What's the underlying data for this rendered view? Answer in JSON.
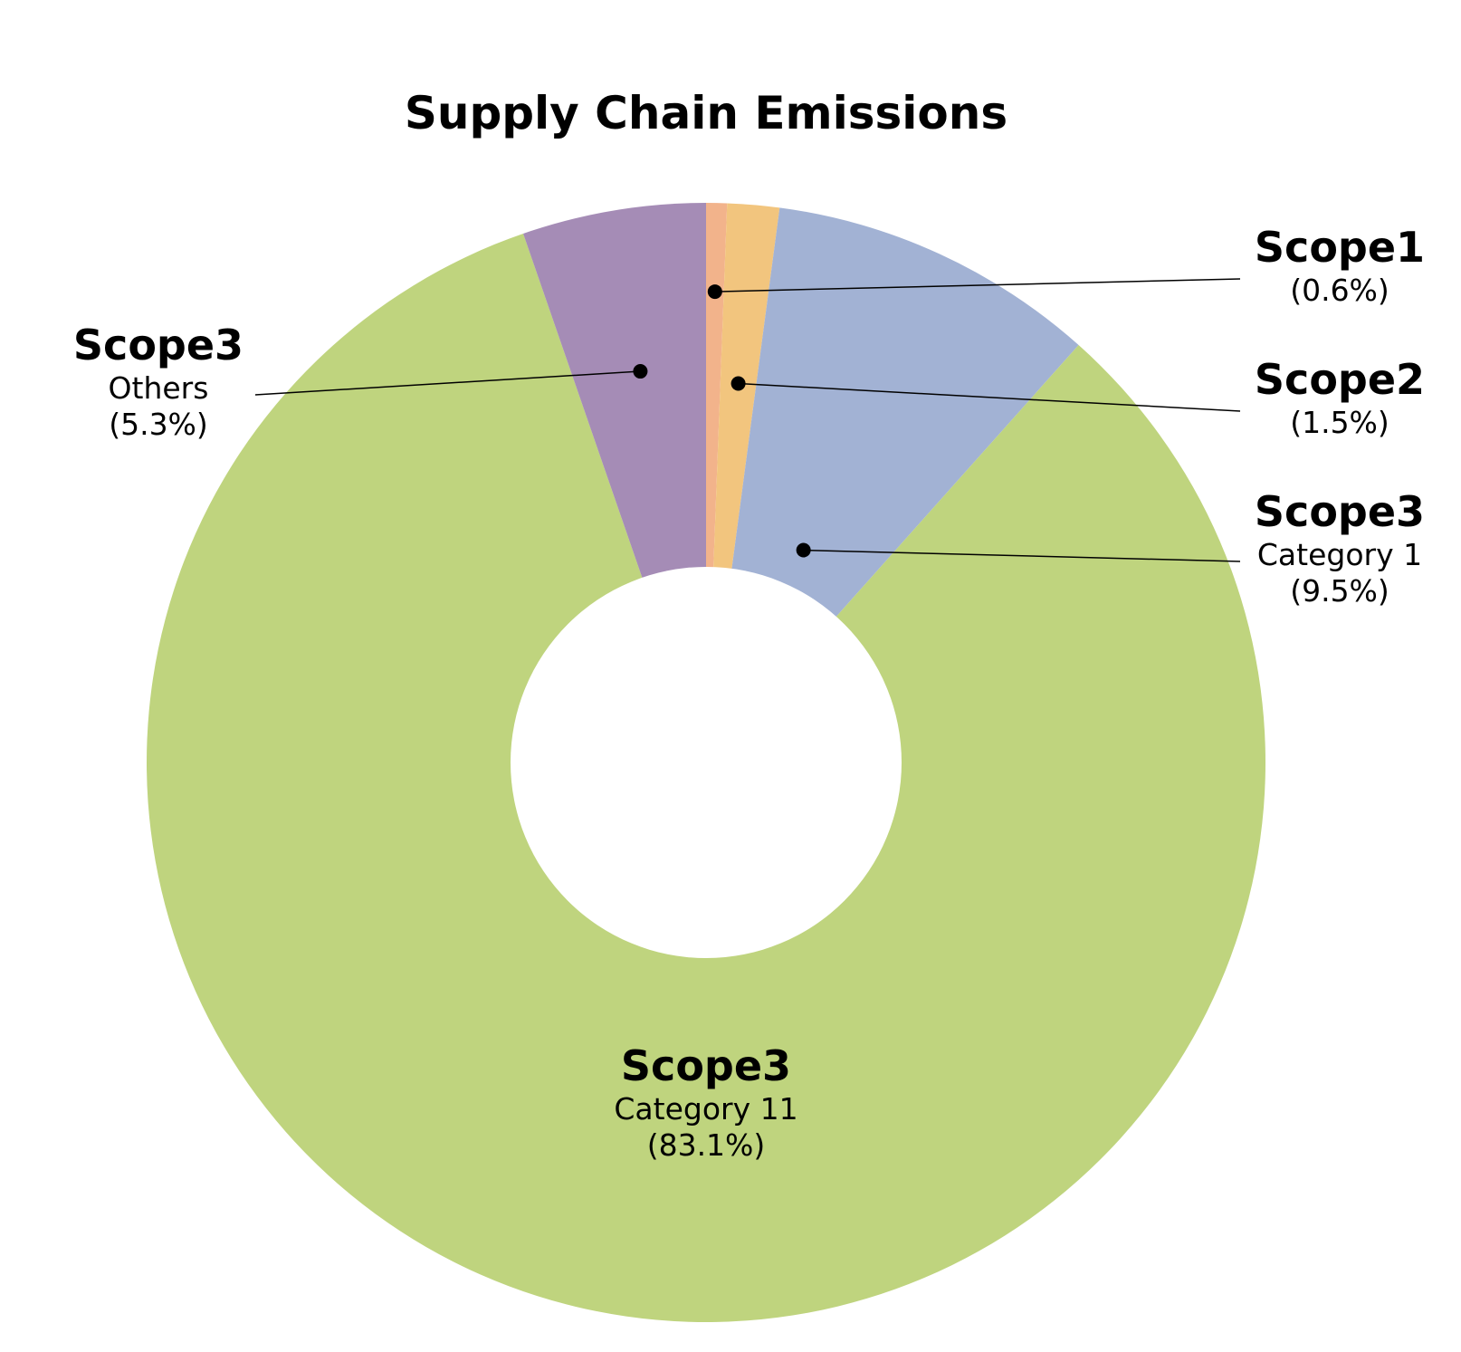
{
  "chart_data": {
    "type": "pie",
    "title": "Supply Chain Emissions",
    "slices": [
      {
        "name": "Scope1",
        "sublabel": "",
        "pct_label": "(0.6%)",
        "value": 0.6,
        "color": "#f2b38b"
      },
      {
        "name": "Scope2",
        "sublabel": "",
        "pct_label": "(1.5%)",
        "value": 1.5,
        "color": "#f2c57e"
      },
      {
        "name": "Scope3",
        "sublabel": "Category 1",
        "pct_label": "(9.5%)",
        "value": 9.5,
        "color": "#a2b2d4"
      },
      {
        "name": "Scope3",
        "sublabel": "Category 11",
        "pct_label": "(83.1%)",
        "value": 83.1,
        "color": "#bfd47e"
      },
      {
        "name": "Scope3",
        "sublabel": "Others",
        "pct_label": "(5.3%)",
        "value": 5.3,
        "color": "#a58cb6"
      }
    ],
    "donut": true
  }
}
